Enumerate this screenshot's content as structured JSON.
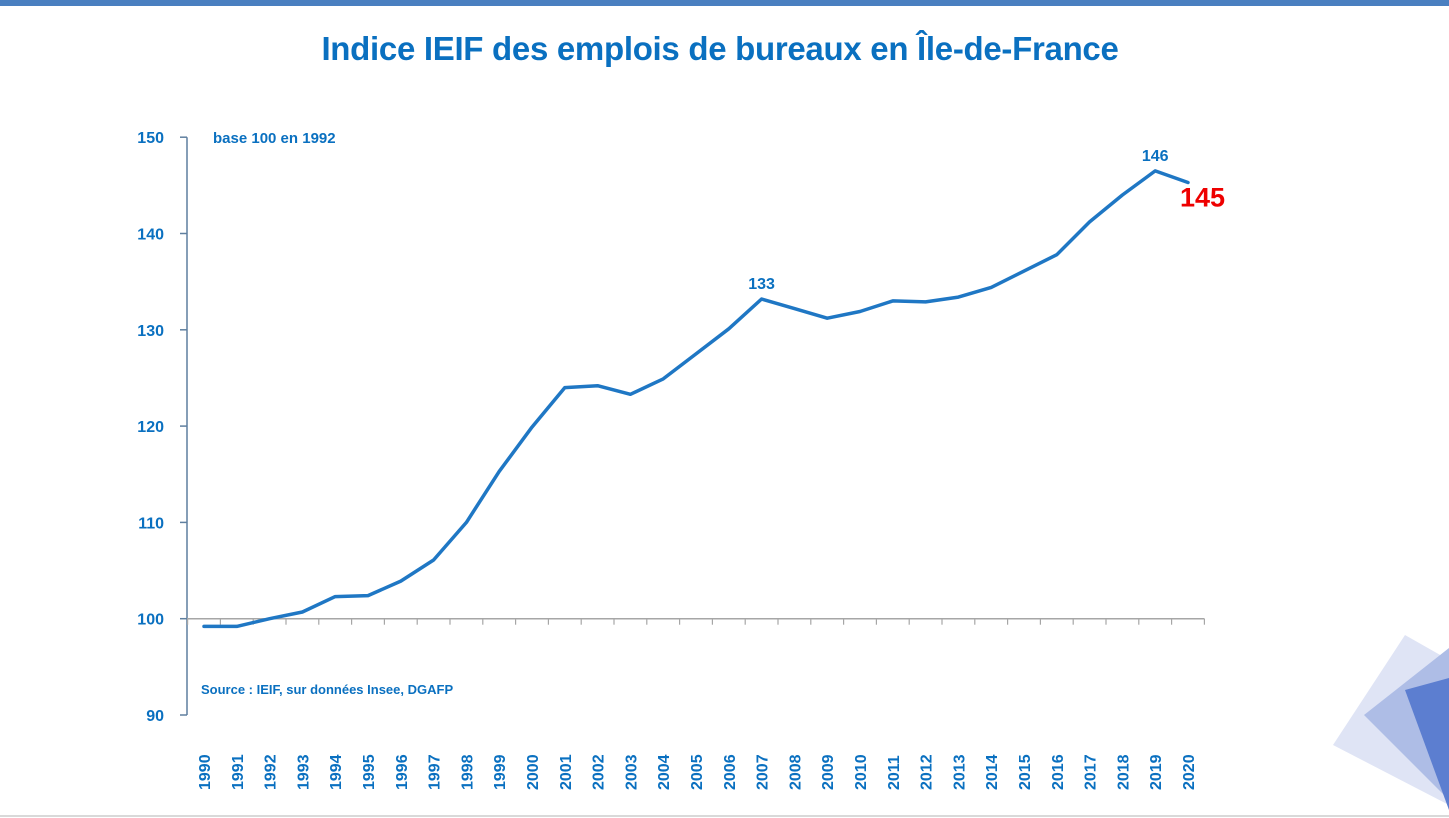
{
  "chart_data": {
    "type": "line",
    "title": "Indice IEIF des emplois de bureaux en Île-de-France",
    "note": "base 100 en 1992",
    "source": "Source : IEIF, sur données Insee, DGAFP",
    "xlabel": "",
    "ylabel": "",
    "ylim": [
      90,
      150
    ],
    "yticks": [
      "90",
      "100",
      "110",
      "120",
      "130",
      "140",
      "150"
    ],
    "categories": [
      "1990",
      "1991",
      "1992",
      "1993",
      "1994",
      "1995",
      "1996",
      "1997",
      "1998",
      "1999",
      "2000",
      "2001",
      "2002",
      "2003",
      "2004",
      "2005",
      "2006",
      "2007",
      "2008",
      "2009",
      "2010",
      "2011",
      "2012",
      "2013",
      "2014",
      "2015",
      "2016",
      "2017",
      "2018",
      "2019",
      "2020"
    ],
    "series": [
      {
        "color": "#1f77c4",
        "values": [
          99.2,
          99.2,
          100.0,
          100.7,
          102.3,
          102.4,
          103.9,
          106.1,
          110.0,
          115.3,
          119.9,
          124.0,
          124.2,
          123.3,
          124.9,
          127.5,
          130.1,
          133.2,
          132.2,
          131.2,
          131.9,
          133.0,
          132.9,
          133.4,
          134.4,
          136.1,
          137.8,
          141.2,
          144.0,
          146.5,
          145.3
        ]
      }
    ],
    "data_labels": [
      {
        "category": "2007",
        "text": "133"
      },
      {
        "category": "2019",
        "text": "146"
      },
      {
        "category": "2020",
        "text": "145"
      }
    ],
    "grid": false,
    "colors": {
      "axis": "#0a70c0",
      "line": "#1f77c4",
      "highlight": "#ee0000"
    }
  }
}
